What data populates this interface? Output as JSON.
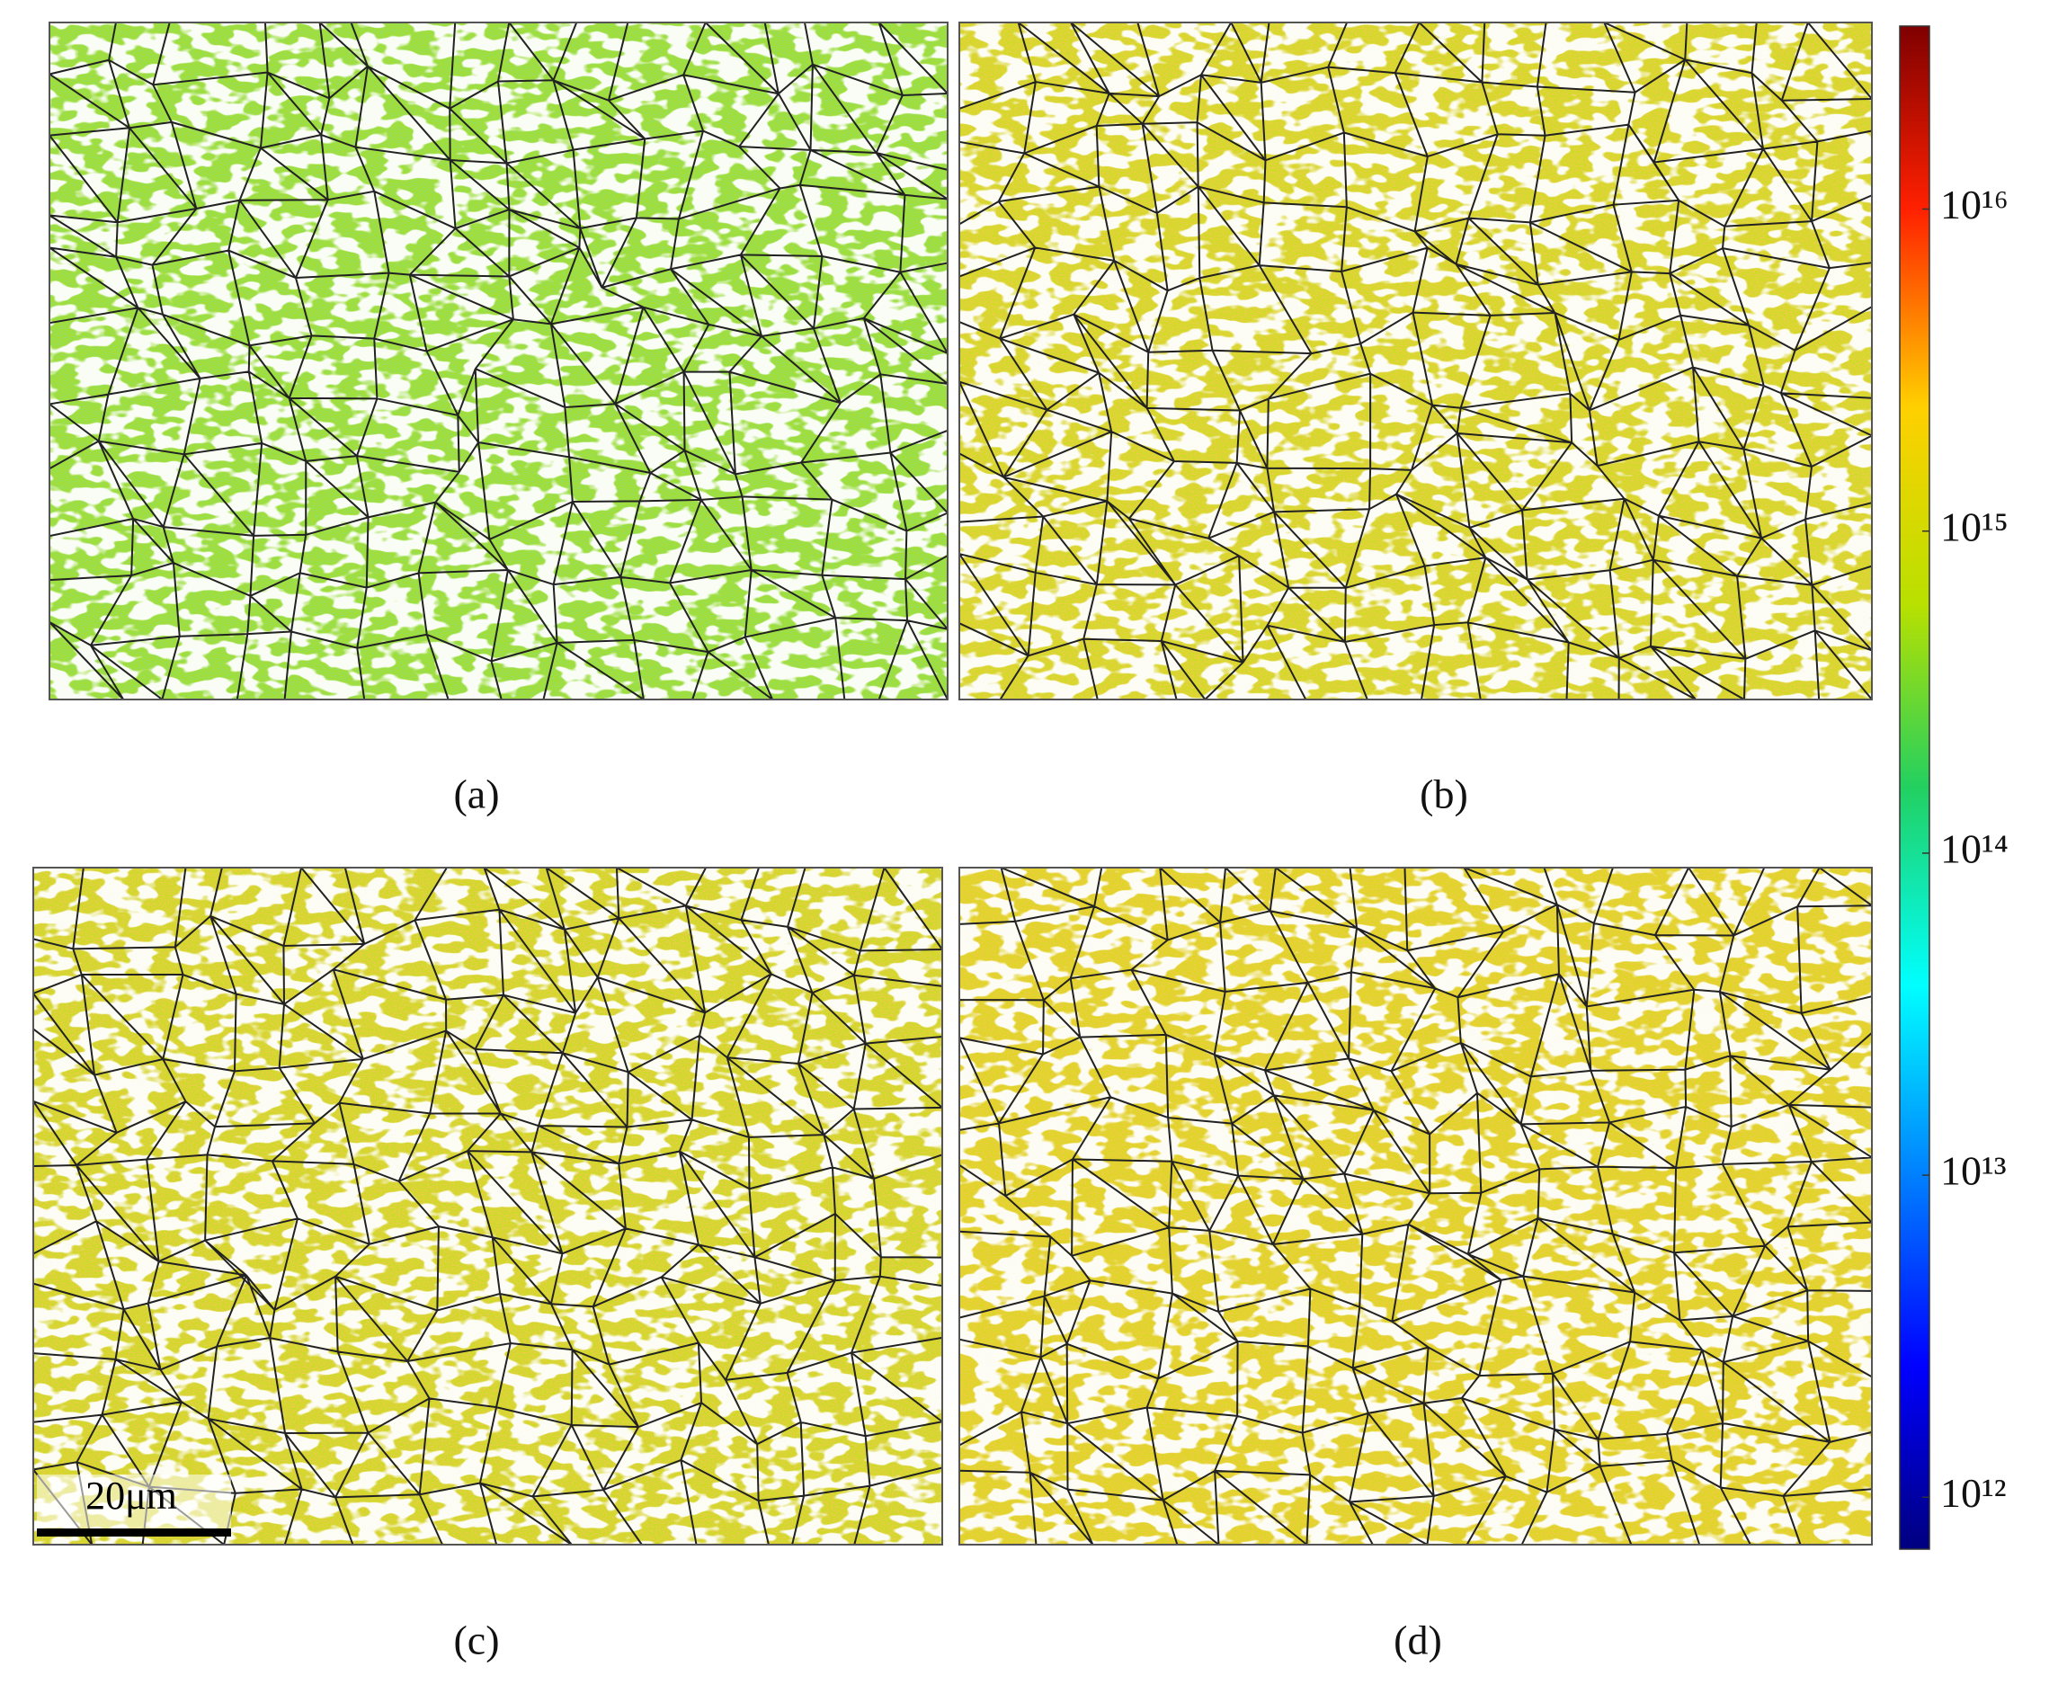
{
  "panels": [
    {
      "label": "(a)"
    },
    {
      "label": "(b)"
    },
    {
      "label": "(c)"
    },
    {
      "label": "(d)"
    }
  ],
  "scale_bar": {
    "label": "20μm"
  },
  "colorbar": {
    "scale": "log",
    "lim": [
      690000000000,
      37000000000000000
    ],
    "ticks": [
      {
        "value": 1000000000000,
        "label": "10¹²"
      },
      {
        "value": 10000000000000,
        "label": "10¹³"
      },
      {
        "value": 100000000000000,
        "label": "10¹⁴"
      },
      {
        "value": 1000000000000000,
        "label": "10¹⁵"
      },
      {
        "value": 10000000000000000,
        "label": "10¹⁶"
      }
    ]
  }
}
